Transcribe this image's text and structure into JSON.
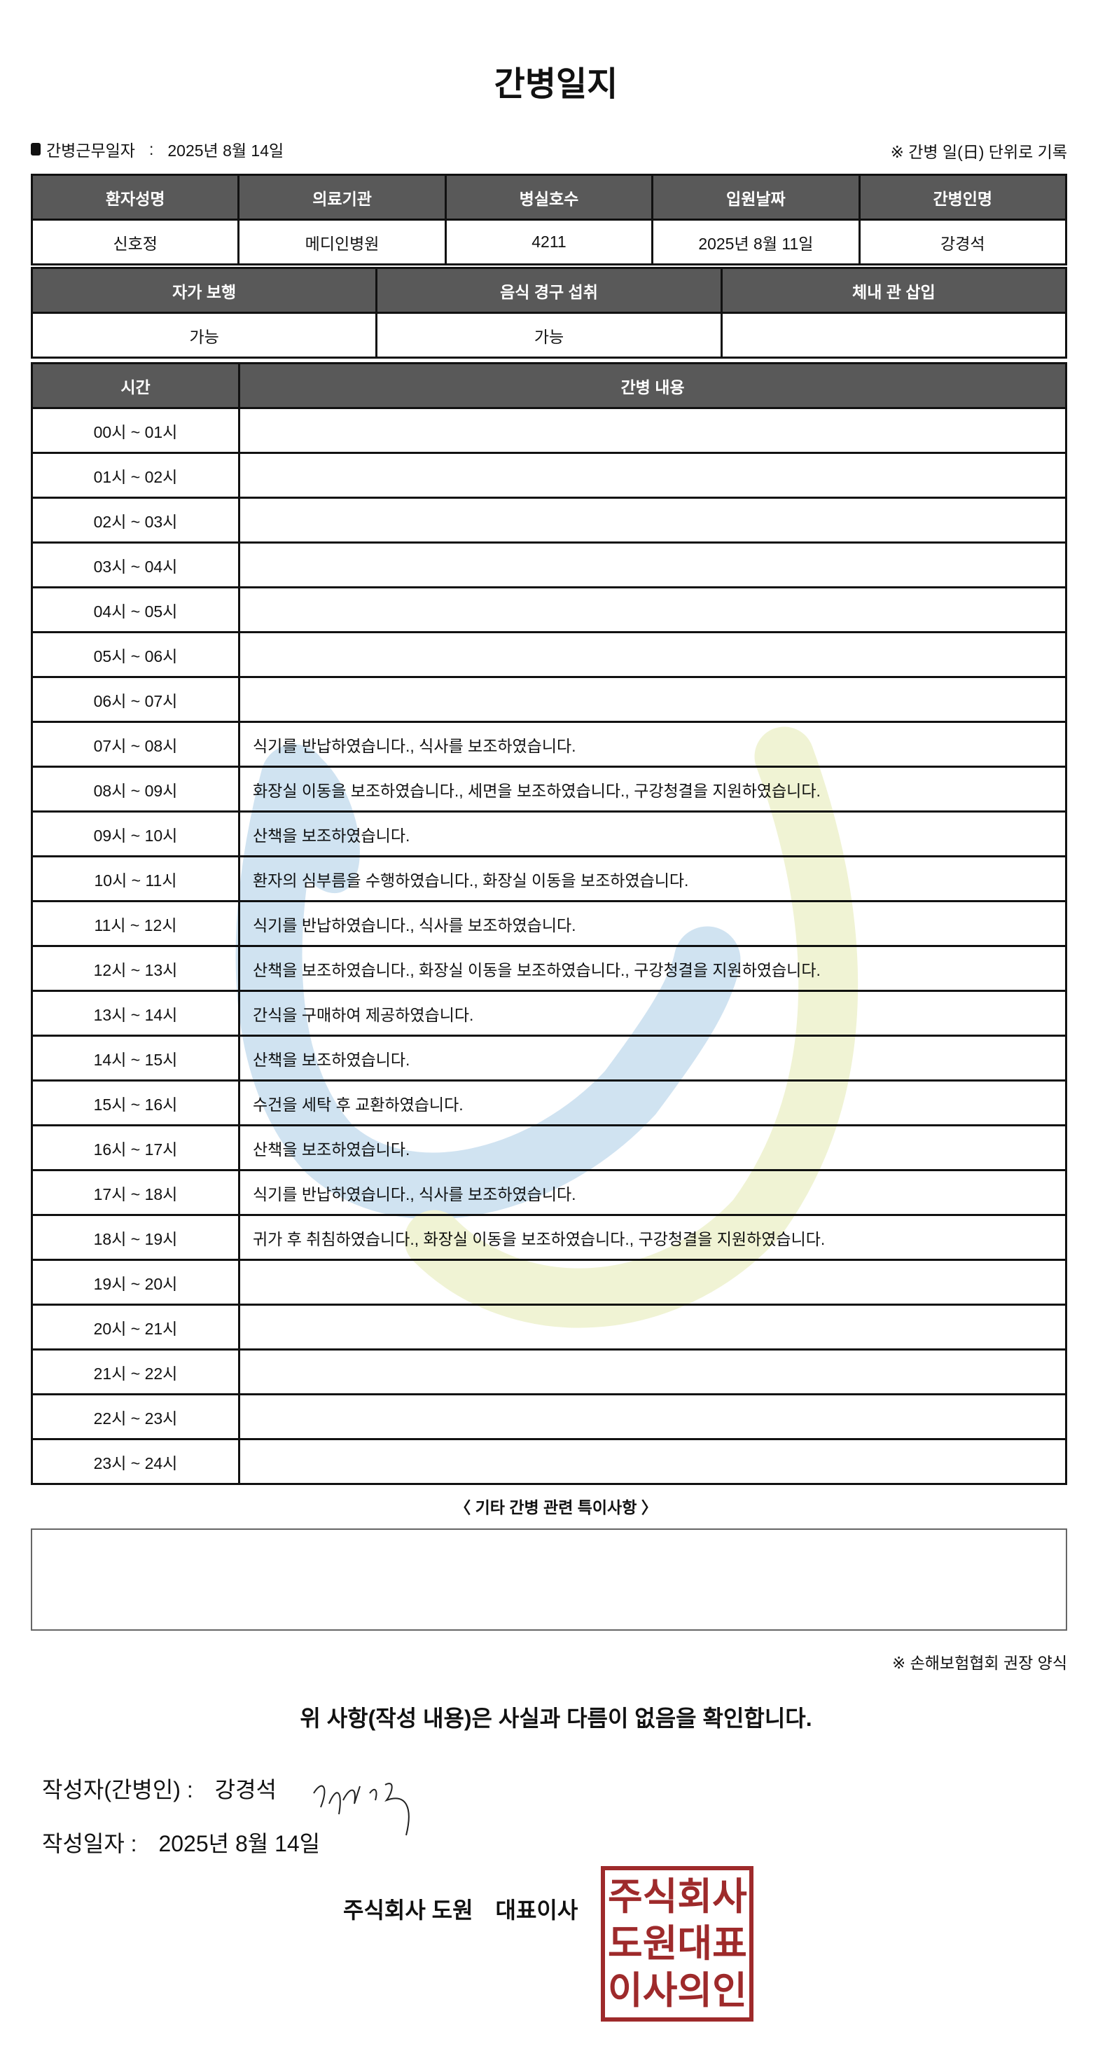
{
  "title": "간병일지",
  "work_date": {
    "label": "간병근무일자",
    "separator": ":",
    "value": "2025년 8월 14일"
  },
  "record_note": "※ 간병 일(日) 단위로 기록",
  "info_table": {
    "headers": [
      "환자성명",
      "의료기관",
      "병실호수",
      "입원날짜",
      "간병인명"
    ],
    "values": [
      "신호정",
      "메디인병원",
      "4211",
      "2025년 8월 11일",
      "강경석"
    ]
  },
  "status_table": {
    "headers": [
      "자가 보행",
      "음식 경구 섭취",
      "체내 관 삽입"
    ],
    "values": [
      "가능",
      "가능",
      ""
    ]
  },
  "log_table": {
    "headers": [
      "시간",
      "간병 내용"
    ],
    "rows": [
      {
        "time": "00시 ~ 01시",
        "content": ""
      },
      {
        "time": "01시 ~ 02시",
        "content": ""
      },
      {
        "time": "02시 ~ 03시",
        "content": ""
      },
      {
        "time": "03시 ~ 04시",
        "content": ""
      },
      {
        "time": "04시 ~ 05시",
        "content": ""
      },
      {
        "time": "05시 ~ 06시",
        "content": ""
      },
      {
        "time": "06시 ~ 07시",
        "content": ""
      },
      {
        "time": "07시 ~ 08시",
        "content": "식기를 반납하였습니다., 식사를 보조하였습니다."
      },
      {
        "time": "08시 ~ 09시",
        "content": "화장실 이동을 보조하였습니다., 세면을 보조하였습니다., 구강청결을 지원하였습니다."
      },
      {
        "time": "09시 ~ 10시",
        "content": "산책을 보조하였습니다."
      },
      {
        "time": "10시 ~ 11시",
        "content": "환자의 심부름을 수행하였습니다., 화장실 이동을 보조하였습니다."
      },
      {
        "time": "11시 ~ 12시",
        "content": "식기를 반납하였습니다., 식사를 보조하였습니다."
      },
      {
        "time": "12시 ~ 13시",
        "content": "산책을 보조하였습니다., 화장실 이동을 보조하였습니다., 구강청결을 지원하였습니다."
      },
      {
        "time": "13시 ~ 14시",
        "content": "간식을 구매하여 제공하였습니다."
      },
      {
        "time": "14시 ~ 15시",
        "content": "산책을 보조하였습니다."
      },
      {
        "time": "15시 ~ 16시",
        "content": "수건을 세탁 후 교환하였습니다."
      },
      {
        "time": "16시 ~ 17시",
        "content": "산책을 보조하였습니다."
      },
      {
        "time": "17시 ~ 18시",
        "content": "식기를 반납하였습니다., 식사를 보조하였습니다."
      },
      {
        "time": "18시 ~ 19시",
        "content": "귀가 후 취침하였습니다., 화장실 이동을 보조하였습니다., 구강청결을 지원하였습니다."
      },
      {
        "time": "19시 ~ 20시",
        "content": ""
      },
      {
        "time": "20시 ~ 21시",
        "content": ""
      },
      {
        "time": "21시 ~ 22시",
        "content": ""
      },
      {
        "time": "22시 ~ 23시",
        "content": ""
      },
      {
        "time": "23시 ~ 24시",
        "content": ""
      }
    ]
  },
  "notes": {
    "title": "〈 기타 간병 관련 특이사항 〉",
    "value": ""
  },
  "form_note": "※ 손해보험협회 권장 양식",
  "confirmation": "위 사항(작성 내용)은 사실과 다름이 없음을 확인합니다.",
  "writer": {
    "label": "작성자(간병인) :",
    "name": "강경석"
  },
  "written_date": {
    "label": "작성일자 :",
    "value": "2025년 8월 14일"
  },
  "company": "주식회사 도원　대표이사",
  "seal_text": "주식회사도원대표이사의인",
  "colors": {
    "header_bg": "#595959",
    "seal": "#9e2a2b",
    "watermark_blue": "#a9cbe6",
    "watermark_green": "#e3eab0"
  }
}
